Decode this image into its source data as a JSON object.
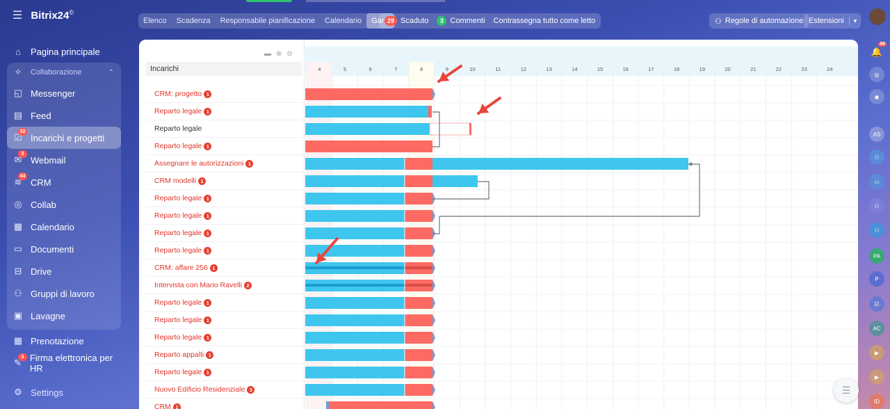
{
  "app": {
    "name": "Bitrix24",
    "registered": "©"
  },
  "sidebar": {
    "items": [
      {
        "label": "Pagina principale",
        "icon": "home-icon"
      },
      {
        "label": "Collaborazione",
        "icon": "collab-icon",
        "group_head": true
      },
      {
        "label": "Messenger",
        "icon": "chat-icon"
      },
      {
        "label": "Feed",
        "icon": "feed-icon"
      },
      {
        "label": "Incarichi e progetti",
        "icon": "tasks-icon",
        "badge": "32",
        "active": true
      },
      {
        "label": "Webmail",
        "icon": "mail-icon",
        "badge": "3"
      },
      {
        "label": "CRM",
        "icon": "crm-icon",
        "badge": "44"
      },
      {
        "label": "Collab",
        "icon": "collab-ring-icon"
      },
      {
        "label": "Calendario",
        "icon": "calendar-icon"
      },
      {
        "label": "Documenti",
        "icon": "documents-icon"
      },
      {
        "label": "Drive",
        "icon": "drive-icon"
      },
      {
        "label": "Gruppi di lavoro",
        "icon": "groups-icon"
      },
      {
        "label": "Lavagne",
        "icon": "boards-icon"
      },
      {
        "label": "Prenotazione",
        "icon": "booking-icon"
      },
      {
        "label": "Firma elettronica per HR",
        "icon": "signature-icon",
        "badge": "3"
      },
      {
        "label": "Settings",
        "icon": "gear-icon"
      }
    ]
  },
  "toolbar": {
    "tabs": [
      "Elenco",
      "Scadenza",
      "Responsabile pianificazione",
      "Calendario",
      "Gantt"
    ],
    "active_tab": "Gantt",
    "overdue_count": "29",
    "overdue_label": "Scaduto",
    "comments_count": "3",
    "comments_label": "Commenti",
    "mark_read_label": "Contrassegna tutto come letto",
    "automation_label": "Regole di automazione",
    "extensions_label": "Estensioni"
  },
  "rail": {
    "notifications_badge": "49",
    "avatars": [
      "AS",
      "PA",
      "P",
      "AC",
      "ID"
    ]
  },
  "gantt": {
    "column_header": "Incarichi",
    "days": [
      "4",
      "5",
      "6",
      "7",
      "8",
      "9",
      "10",
      "11",
      "12",
      "13",
      "14",
      "15",
      "16",
      "17",
      "18",
      "19",
      "20",
      "21",
      "22",
      "23",
      "24"
    ],
    "tasks": [
      {
        "name": "CRM: progetto",
        "badge": "1"
      },
      {
        "name": "Reparto legale",
        "badge": "1"
      },
      {
        "name": "Reparto legale",
        "badge": ""
      },
      {
        "name": "Reparto legale",
        "badge": "1"
      },
      {
        "name": "Assegnare le autorizzazioni",
        "badge": "1"
      },
      {
        "name": "CRM modelli",
        "badge": "1"
      },
      {
        "name": "Reparto legale",
        "badge": "1"
      },
      {
        "name": "Reparto legale",
        "badge": "1"
      },
      {
        "name": "Reparto legale",
        "badge": "1"
      },
      {
        "name": "Reparto legale",
        "badge": "1"
      },
      {
        "name": "CRM: affare 256",
        "badge": "1"
      },
      {
        "name": "Intervista con Mario Ravelli",
        "badge": "2"
      },
      {
        "name": "Reparto legale",
        "badge": "1"
      },
      {
        "name": "Reparto legale",
        "badge": "1"
      },
      {
        "name": "Reparto legale",
        "badge": "1"
      },
      {
        "name": "Reparto appalti",
        "badge": "1"
      },
      {
        "name": "Reparto legale",
        "badge": "1"
      },
      {
        "name": "Nuovo Edificio Residenziale",
        "badge": "3"
      },
      {
        "name": "CRM",
        "badge": "1"
      }
    ]
  }
}
